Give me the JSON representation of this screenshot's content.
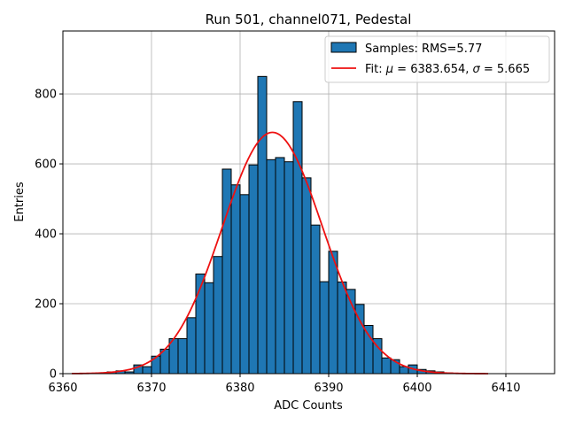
{
  "chart_data": {
    "type": "bar",
    "title": "Run 501, channel071, Pedestal",
    "xlabel": "ADC Counts",
    "ylabel": "Entries",
    "xlim": [
      6360,
      6415.5
    ],
    "ylim": [
      0,
      980
    ],
    "xticks": [
      6360,
      6370,
      6380,
      6390,
      6400,
      6410
    ],
    "yticks": [
      0,
      200,
      400,
      600,
      800
    ],
    "grid": true,
    "legend_position": "top-right",
    "colors": {
      "bars": "#1f77b4",
      "bar_edge": "#000000",
      "fit": "#ee1111"
    },
    "series": [
      {
        "name": "Samples: RMS=5.77",
        "kind": "histogram",
        "bin_width": 1,
        "bin_start": 6364,
        "counts": [
          2,
          5,
          8,
          5,
          25,
          20,
          50,
          70,
          100,
          100,
          160,
          285,
          260,
          335,
          585,
          540,
          512,
          597,
          850,
          612,
          618,
          606,
          778,
          560,
          425,
          263,
          350,
          262,
          241,
          198,
          138,
          100,
          45,
          40,
          20,
          25,
          12,
          8,
          5,
          2
        ]
      },
      {
        "name": "Fit",
        "kind": "gaussian",
        "mu": 6383.654,
        "sigma": 5.665,
        "amplitude": 690,
        "x_range": [
          6361,
          6408
        ]
      }
    ],
    "legend": {
      "hist_label": "Samples: RMS=5.77",
      "fit_prefix": "Fit: ",
      "mu_symbol": "μ",
      "mu_text": " = 6383.654, ",
      "sigma_symbol": "σ",
      "sigma_text": " = 5.665"
    }
  }
}
